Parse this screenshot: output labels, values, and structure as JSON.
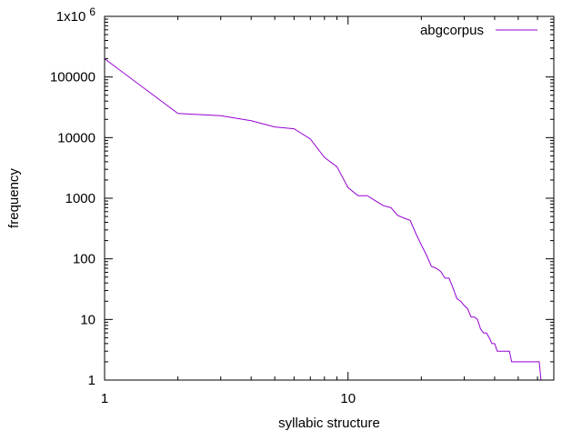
{
  "chart_data": {
    "type": "line",
    "title": "",
    "xlabel": "syllabic structure",
    "ylabel": "frequency",
    "x_scale": "log",
    "y_scale": "log",
    "xlim": [
      1,
      70
    ],
    "ylim": [
      1,
      1000000
    ],
    "grid": false,
    "legend_position": "top-right",
    "x_ticks": [
      {
        "value": 1,
        "label": "1"
      },
      {
        "value": 10,
        "label": "10"
      }
    ],
    "y_ticks": [
      {
        "value": 1,
        "label": "1"
      },
      {
        "value": 10,
        "label": "10"
      },
      {
        "value": 100,
        "label": "100"
      },
      {
        "value": 1000,
        "label": "1000"
      },
      {
        "value": 10000,
        "label": "10000"
      },
      {
        "value": 100000,
        "label": "100000"
      },
      {
        "value": 1000000,
        "label": "1x10",
        "exp": "6"
      }
    ],
    "series": [
      {
        "name": "abgcorpus",
        "color": "#9400d3",
        "x": [
          1,
          2,
          3,
          4,
          5,
          6,
          7,
          8,
          9,
          10,
          11,
          12,
          13,
          14,
          15,
          16,
          17,
          18,
          19,
          20,
          21,
          22,
          23,
          24,
          25,
          26,
          27,
          28,
          29,
          30,
          31,
          32,
          33,
          34,
          35,
          36,
          37,
          38,
          39,
          40,
          41,
          42,
          43,
          44,
          45,
          46,
          47,
          48,
          49,
          50,
          51,
          52,
          53,
          54,
          55,
          56,
          57,
          58,
          59,
          60,
          61,
          62,
          63
        ],
        "y": [
          200000,
          25000,
          23000,
          19000,
          15000,
          14000,
          9500,
          4700,
          3300,
          1500,
          1100,
          1100,
          900,
          750,
          700,
          520,
          470,
          430,
          260,
          170,
          115,
          75,
          70,
          62,
          48,
          48,
          33,
          22,
          20,
          17,
          15,
          11,
          11,
          10,
          7,
          6,
          6,
          5,
          4,
          4,
          3,
          3,
          3,
          3,
          3,
          3,
          2,
          2,
          2,
          2,
          2,
          2,
          2,
          2,
          2,
          2,
          2,
          2,
          2,
          2,
          2,
          1,
          1
        ]
      }
    ]
  }
}
